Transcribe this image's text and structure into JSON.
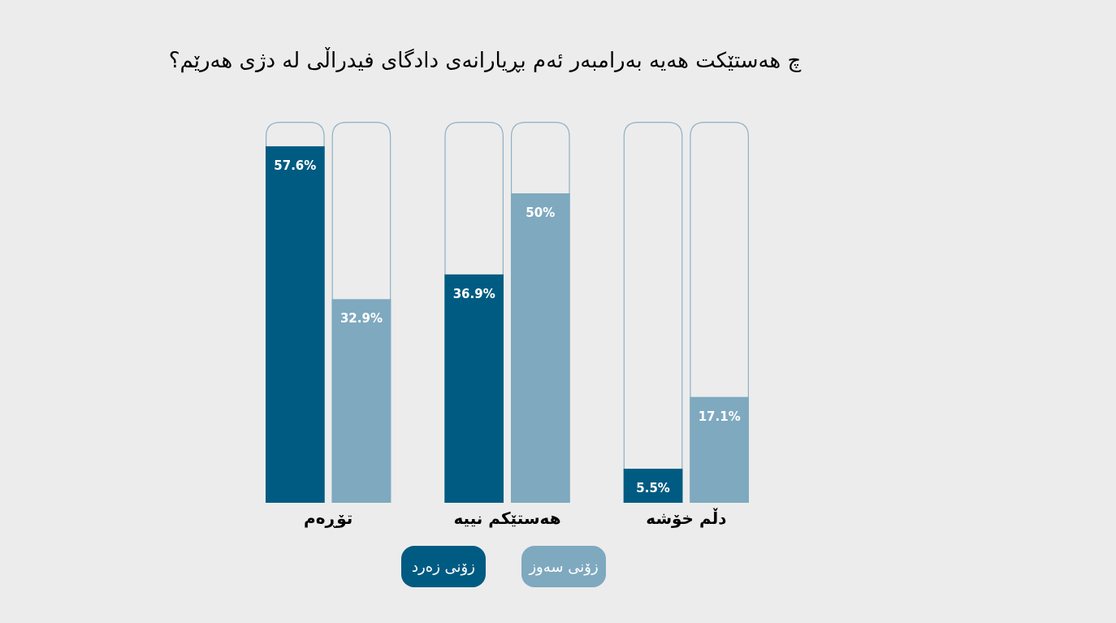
{
  "chart_data": {
    "type": "bar",
    "title": "چ هەستێکت هەیە بەرامبەر ئەم بڕیارانەی دادگای فیدراڵی لە دژی هەرێم؟",
    "categories": [
      "تۆڕەم",
      "هەستێکم نییە",
      "دڵم خۆشە"
    ],
    "series": [
      {
        "name": "زۆنی زەرد",
        "color": "#005b82",
        "values": [
          57.6,
          36.9,
          5.5
        ],
        "value_labels": [
          "57.6%",
          "36.9%",
          "5.5%"
        ]
      },
      {
        "name": "زۆنی سەوز",
        "color": "#7ea9bf",
        "values": [
          32.9,
          50,
          17.1
        ],
        "value_labels": [
          "32.9%",
          "50%",
          "17.1%"
        ]
      }
    ],
    "legend": "bottom"
  }
}
